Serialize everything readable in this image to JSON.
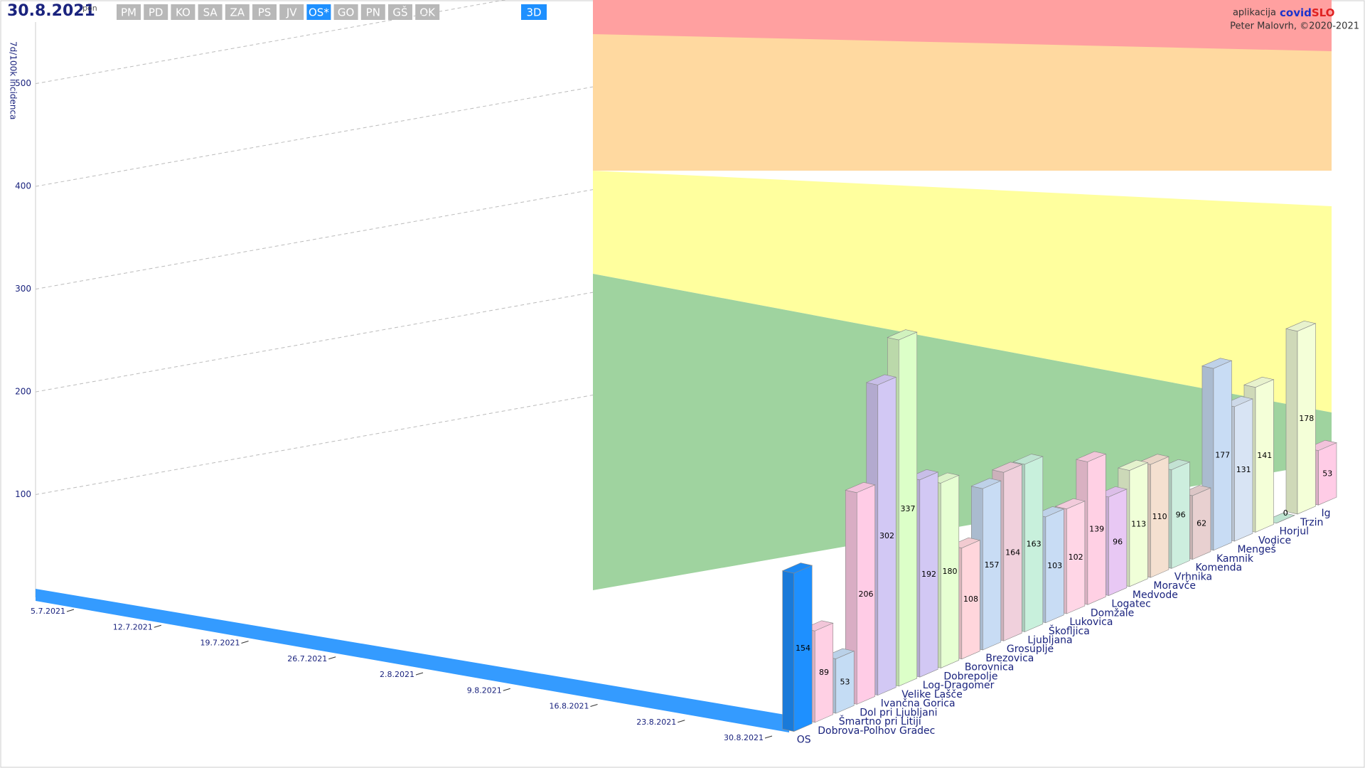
{
  "header": {
    "date": "30.8.2021",
    "weekday": "pon",
    "regions": [
      "PM",
      "PD",
      "KO",
      "SA",
      "ZA",
      "PS",
      "JV",
      "OS*",
      "GO",
      "PN",
      "GŠ",
      "OK"
    ],
    "active_region": 7,
    "view": "3D",
    "app_prefix": "aplikacija",
    "app_name_a": "covid",
    "app_name_b": "SLO",
    "author": "Peter Malovrh, ©2020-2021"
  },
  "chart_data": {
    "type": "bar3d",
    "ylabel": "7d/100k incidenca",
    "categories": [
      "OS",
      "Dobrova-Polhov Gradec",
      "Šmartno pri Litiji",
      "Dol pri Ljubljani",
      "Ivančna Gorica",
      "Velike Lašče",
      "Log-Dragomer",
      "Dobrepolje",
      "Borovnica",
      "Brezovica",
      "Grosuplje",
      "Ljubljana",
      "Škofljica",
      "Lukovica",
      "Domžale",
      "Logatec",
      "Medvode",
      "Moravče",
      "Vrhnika",
      "Komenda",
      "Kamnik",
      "Mengeš",
      "Vodice",
      "Horjul",
      "Trzin",
      "Ig"
    ],
    "values": [
      154,
      89,
      53,
      206,
      302,
      337,
      192,
      180,
      108,
      157,
      164,
      163,
      103,
      102,
      139,
      96,
      113,
      110,
      96,
      62,
      177,
      131,
      141,
      0,
      178,
      53
    ],
    "colors": [
      "#1e90ff",
      "#ffd0e4",
      "#c4dcf4",
      "#ffcce6",
      "#d2c8f4",
      "#dcffc8",
      "#d2c8f4",
      "#e6ffd2",
      "#ffd6dc",
      "#c8dcf4",
      "#f0d0dc",
      "#c8f0dc",
      "#c8dcf4",
      "#ffd6e6",
      "#ffd0e4",
      "#e8c8f4",
      "#f0ffd8",
      "#f4e0d0",
      "#cdeede",
      "#e8d0d0",
      "#c8dcf4",
      "#d8e4f4",
      "#f4ffd8",
      "#c8f0dc",
      "#f4ffd8",
      "#ffcce6"
    ],
    "dates": [
      "5.7.2021",
      "12.7.2021",
      "19.7.2021",
      "26.7.2021",
      "2.8.2021",
      "9.8.2021",
      "16.8.2021",
      "23.8.2021",
      "30.8.2021"
    ],
    "ylim": [
      0,
      560
    ],
    "yticks": [
      100,
      200,
      300,
      400,
      500
    ],
    "grid": true
  }
}
